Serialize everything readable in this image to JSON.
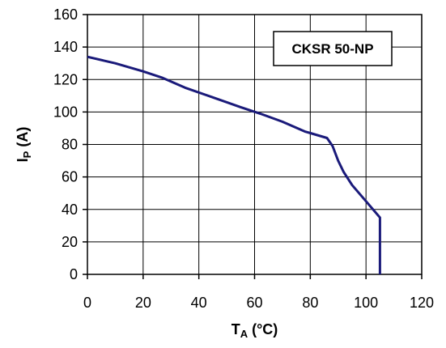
{
  "chart_data": {
    "type": "line",
    "title": "",
    "annotation": "CKSR 50-NP",
    "xlabel": {
      "main": "T",
      "sub": "A",
      "unit": " (°C)"
    },
    "ylabel": {
      "main": "I",
      "sub": "P",
      "unit": "  (A)"
    },
    "xlim": [
      0,
      120
    ],
    "ylim": [
      0,
      160
    ],
    "x_ticks": [
      "0",
      "20",
      "40",
      "60",
      "80",
      "100",
      "120"
    ],
    "y_ticks": [
      "0",
      "20",
      "40",
      "60",
      "80",
      "100",
      "120",
      "140",
      "160"
    ],
    "grid": true,
    "series": [
      {
        "color": "#1a1a7a",
        "x": [
          0,
          10,
          20,
          27,
          35,
          45,
          55,
          62,
          70,
          78,
          86,
          88,
          90,
          92,
          95,
          100,
          105,
          105
        ],
        "y": [
          134,
          130,
          125,
          121,
          115,
          109,
          103,
          99,
          94,
          88,
          84,
          79,
          70,
          63,
          55,
          45,
          35,
          0
        ]
      }
    ]
  }
}
